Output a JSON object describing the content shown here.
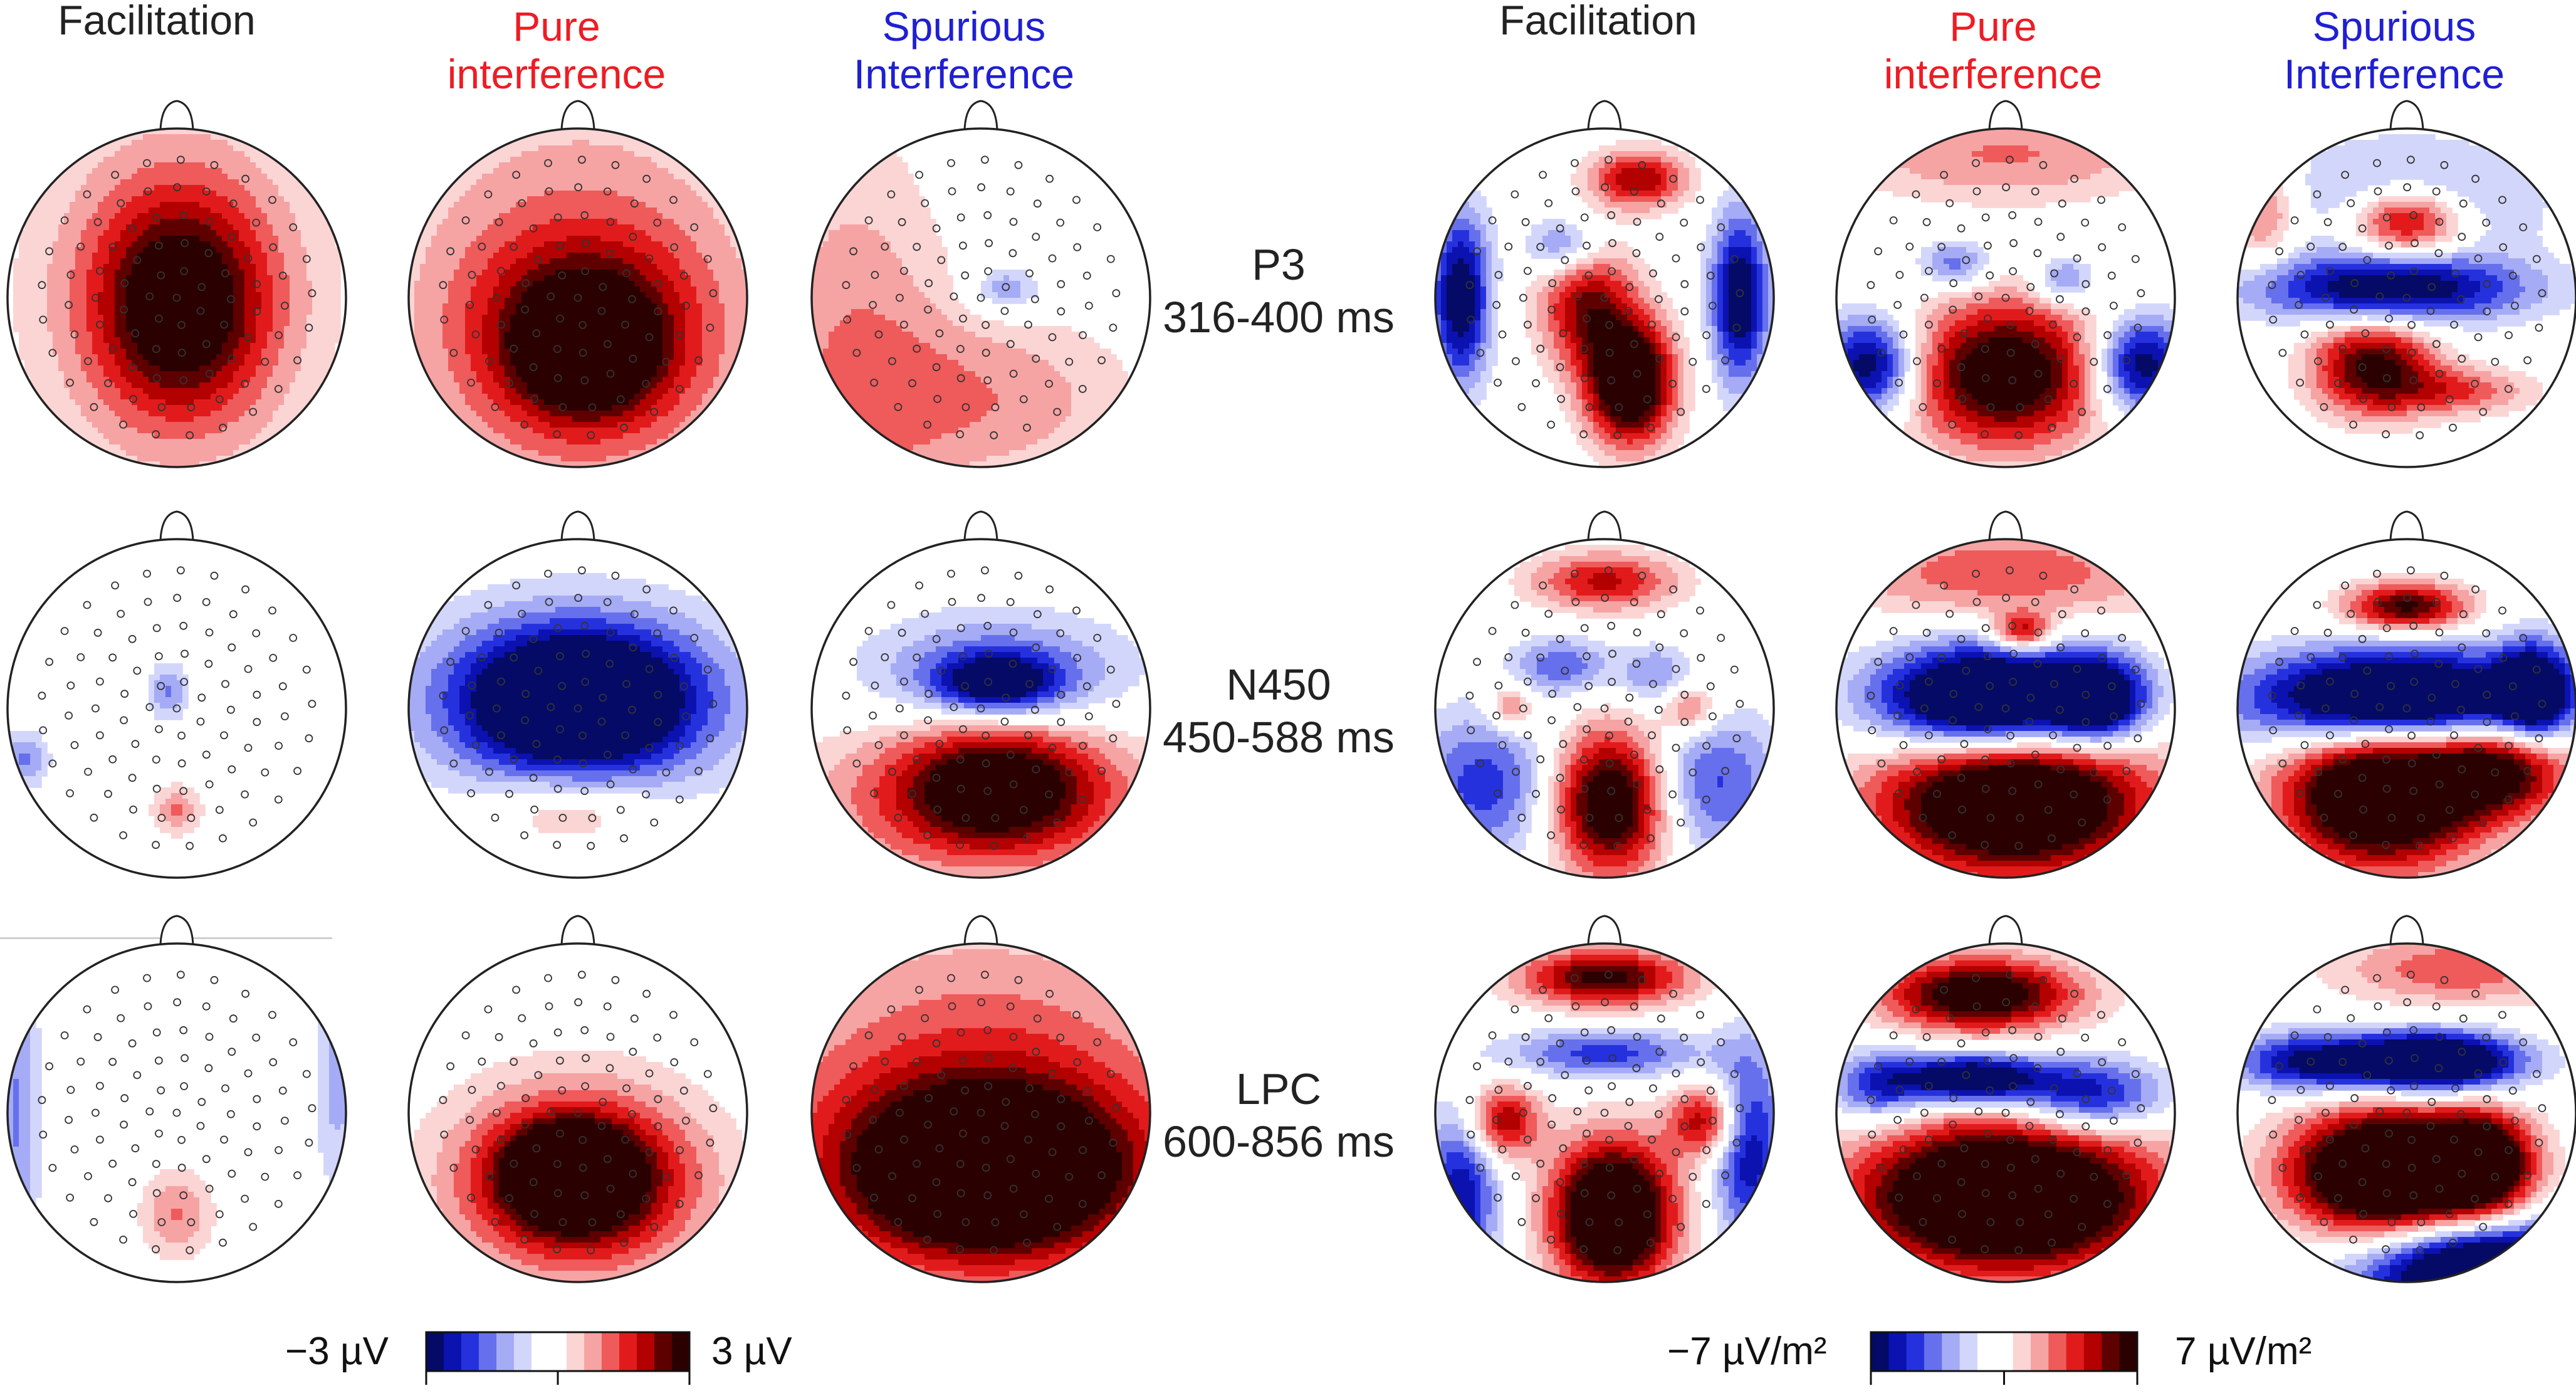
{
  "headers": {
    "voltage": [
      {
        "lines": [
          "",
          "Facilitation"
        ],
        "color": "#222222"
      },
      {
        "lines": [
          "Pure",
          "interference"
        ],
        "color": "#ee1c24"
      },
      {
        "lines": [
          "Spurious",
          "Interference"
        ],
        "color": "#1f1fd4"
      }
    ],
    "csd": [
      {
        "lines": [
          "",
          "Facilitation"
        ],
        "color": "#222222"
      },
      {
        "lines": [
          "Pure",
          "interference"
        ],
        "color": "#ee1c24"
      },
      {
        "lines": [
          "Spurious",
          "Interference"
        ],
        "color": "#1f1fd4"
      }
    ]
  },
  "rows": [
    {
      "component": "P3",
      "window": "316-400 ms"
    },
    {
      "component": "N450",
      "window": "450-588 ms"
    },
    {
      "component": "LPC",
      "window": "600-856 ms"
    }
  ],
  "colorbars": {
    "voltage": {
      "min_label": "−3 µV",
      "max_label": "3 µV",
      "min": -3,
      "max": 3,
      "unit": "µV"
    },
    "csd": {
      "min_label": "−7 µV/m²",
      "max_label": "7 µV/m²",
      "min": -7,
      "max": 7,
      "unit": "µV/m²"
    }
  },
  "maps": [
    {
      "row": 0,
      "col": 0,
      "blobs": [
        [
          0.0,
          -0.05,
          0.6,
          0.75,
          0.4
        ],
        [
          0.02,
          0.05,
          0.35,
          0.45,
          0.9
        ]
      ]
    },
    {
      "row": 0,
      "col": 1,
      "blobs": [
        [
          0.0,
          -0.05,
          0.8,
          0.85,
          0.4
        ],
        [
          0.05,
          0.25,
          0.45,
          0.4,
          0.9
        ],
        [
          0.05,
          0.3,
          0.2,
          0.18,
          1.3
        ]
      ]
    },
    {
      "row": 0,
      "col": 2,
      "blobs": [
        [
          -0.75,
          0.3,
          0.4,
          0.9,
          0.35
        ],
        [
          0.05,
          0.6,
          0.6,
          0.35,
          0.35
        ],
        [
          0.15,
          -0.05,
          0.15,
          0.1,
          -0.4
        ]
      ]
    },
    {
      "row": 0,
      "col": 3,
      "blobs": [
        [
          0.2,
          -0.7,
          0.2,
          0.12,
          0.8
        ],
        [
          -0.85,
          0.0,
          0.12,
          0.35,
          -1.0
        ],
        [
          0.8,
          0.0,
          0.12,
          0.35,
          -1.0
        ],
        [
          -0.1,
          0.05,
          0.2,
          0.25,
          0.8
        ],
        [
          0.15,
          0.5,
          0.18,
          0.25,
          1.4
        ],
        [
          -0.25,
          -0.3,
          0.15,
          0.12,
          -0.5
        ]
      ]
    },
    {
      "row": 0,
      "col": 4,
      "blobs": [
        [
          0.0,
          -0.85,
          0.7,
          0.2,
          0.4
        ],
        [
          -0.3,
          -0.2,
          0.15,
          0.1,
          -0.5
        ],
        [
          0.35,
          -0.1,
          0.12,
          0.1,
          -0.5
        ],
        [
          -0.8,
          0.4,
          0.2,
          0.2,
          -1.0
        ],
        [
          0.8,
          0.4,
          0.2,
          0.2,
          -1.0
        ],
        [
          0.0,
          0.45,
          0.4,
          0.3,
          1.2
        ]
      ]
    },
    {
      "row": 0,
      "col": 5,
      "blobs": [
        [
          0.0,
          -0.45,
          0.25,
          0.15,
          1.1
        ],
        [
          0.0,
          -0.55,
          0.5,
          0.25,
          -0.5
        ],
        [
          -0.1,
          -0.05,
          0.55,
          0.14,
          -1.0
        ],
        [
          -0.85,
          -0.5,
          0.15,
          0.2,
          0.5
        ],
        [
          -0.2,
          0.4,
          0.25,
          0.2,
          1.0
        ],
        [
          0.3,
          0.55,
          0.3,
          0.1,
          0.5
        ]
      ]
    },
    {
      "row": 1,
      "col": 0,
      "blobs": [
        [
          -0.05,
          -0.1,
          0.08,
          0.12,
          -0.4
        ],
        [
          -0.9,
          0.3,
          0.1,
          0.12,
          -0.4
        ],
        [
          0.0,
          0.6,
          0.1,
          0.1,
          0.4
        ]
      ]
    },
    {
      "row": 1,
      "col": 1,
      "blobs": [
        [
          0.0,
          -0.05,
          0.7,
          0.4,
          -0.5
        ],
        [
          0.0,
          -0.05,
          0.45,
          0.28,
          -1.2
        ],
        [
          -0.05,
          0.6,
          0.35,
          0.15,
          0.35
        ]
      ]
    },
    {
      "row": 1,
      "col": 2,
      "blobs": [
        [
          0.1,
          -0.2,
          0.55,
          0.25,
          -0.5
        ],
        [
          0.1,
          -0.15,
          0.25,
          0.12,
          -0.8
        ],
        [
          0.0,
          0.55,
          0.75,
          0.35,
          0.5
        ],
        [
          0.1,
          0.45,
          0.4,
          0.25,
          0.9
        ]
      ]
    },
    {
      "row": 1,
      "col": 3,
      "blobs": [
        [
          0.0,
          -0.75,
          0.3,
          0.12,
          0.7
        ],
        [
          -0.25,
          -0.25,
          0.2,
          0.12,
          -0.5
        ],
        [
          0.3,
          -0.2,
          0.15,
          0.12,
          -0.4
        ],
        [
          -0.55,
          0.0,
          0.1,
          0.1,
          0.5
        ],
        [
          0.5,
          0.0,
          0.12,
          0.12,
          0.5
        ],
        [
          -0.7,
          0.45,
          0.3,
          0.3,
          -0.6
        ],
        [
          0.6,
          0.45,
          0.3,
          0.3,
          -0.6
        ],
        [
          0.05,
          0.55,
          0.25,
          0.3,
          1.3
        ]
      ]
    },
    {
      "row": 1,
      "col": 4,
      "blobs": [
        [
          0.0,
          -0.8,
          0.7,
          0.2,
          0.5
        ],
        [
          0.1,
          -0.45,
          0.12,
          0.08,
          0.8
        ],
        [
          -0.1,
          -0.05,
          0.45,
          0.22,
          -1.6
        ],
        [
          0.55,
          -0.05,
          0.2,
          0.18,
          -1.0
        ],
        [
          0.05,
          0.55,
          0.55,
          0.3,
          1.6
        ]
      ]
    },
    {
      "row": 1,
      "col": 5,
      "blobs": [
        [
          0.0,
          -0.6,
          0.25,
          0.1,
          1.0
        ],
        [
          -0.05,
          -0.05,
          0.6,
          0.2,
          -1.6
        ],
        [
          0.75,
          -0.1,
          0.15,
          0.2,
          -1.0
        ],
        [
          -0.15,
          0.5,
          0.4,
          0.3,
          1.6
        ],
        [
          0.55,
          0.35,
          0.3,
          0.2,
          1.0
        ]
      ]
    },
    {
      "row": 2,
      "col": 0,
      "blobs": [
        [
          -0.95,
          0.0,
          0.1,
          0.7,
          -0.4
        ],
        [
          0.95,
          -0.2,
          0.1,
          0.5,
          -0.3
        ],
        [
          0.0,
          0.6,
          0.15,
          0.18,
          0.4
        ]
      ]
    },
    {
      "row": 2,
      "col": 1,
      "blobs": [
        [
          0.0,
          0.4,
          0.6,
          0.45,
          0.4
        ],
        [
          0.0,
          0.4,
          0.4,
          0.3,
          1.0
        ],
        [
          -0.05,
          0.35,
          0.2,
          0.15,
          1.4
        ]
      ]
    },
    {
      "row": 2,
      "col": 2,
      "blobs": [
        [
          0.0,
          -0.4,
          0.9,
          0.6,
          0.35
        ],
        [
          0.0,
          0.35,
          0.9,
          0.5,
          0.7
        ],
        [
          0.05,
          0.35,
          0.5,
          0.3,
          1.2
        ],
        [
          0.1,
          0.3,
          0.2,
          0.15,
          1.8
        ]
      ]
    },
    {
      "row": 2,
      "col": 3,
      "blobs": [
        [
          0.0,
          -0.8,
          0.35,
          0.12,
          1.0
        ],
        [
          0.0,
          -0.35,
          0.4,
          0.1,
          -0.6
        ],
        [
          -0.6,
          0.05,
          0.15,
          0.15,
          0.8
        ],
        [
          0.6,
          0.05,
          0.15,
          0.15,
          0.8
        ],
        [
          -0.85,
          0.5,
          0.15,
          0.35,
          -0.8
        ],
        [
          0.85,
          0.2,
          0.15,
          0.4,
          -0.8
        ],
        [
          0.05,
          0.6,
          0.25,
          0.3,
          1.6
        ]
      ]
    },
    {
      "row": 2,
      "col": 4,
      "blobs": [
        [
          -0.15,
          -0.7,
          0.4,
          0.15,
          1.2
        ],
        [
          -0.2,
          -0.2,
          0.3,
          0.1,
          -1.2
        ],
        [
          0.5,
          -0.1,
          0.3,
          0.15,
          -0.8
        ],
        [
          -0.75,
          -0.15,
          0.2,
          0.15,
          -0.6
        ],
        [
          0.0,
          0.5,
          0.6,
          0.3,
          1.8
        ]
      ]
    },
    {
      "row": 2,
      "col": 5,
      "blobs": [
        [
          0.3,
          -0.85,
          0.5,
          0.15,
          0.5
        ],
        [
          0.15,
          -0.3,
          0.35,
          0.12,
          -1.5
        ],
        [
          -0.6,
          -0.3,
          0.3,
          0.12,
          -0.8
        ],
        [
          -0.1,
          0.35,
          0.4,
          0.25,
          1.8
        ],
        [
          0.45,
          0.3,
          0.2,
          0.2,
          1.2
        ],
        [
          0.5,
          0.95,
          0.5,
          0.2,
          -1.6
        ]
      ]
    }
  ]
}
